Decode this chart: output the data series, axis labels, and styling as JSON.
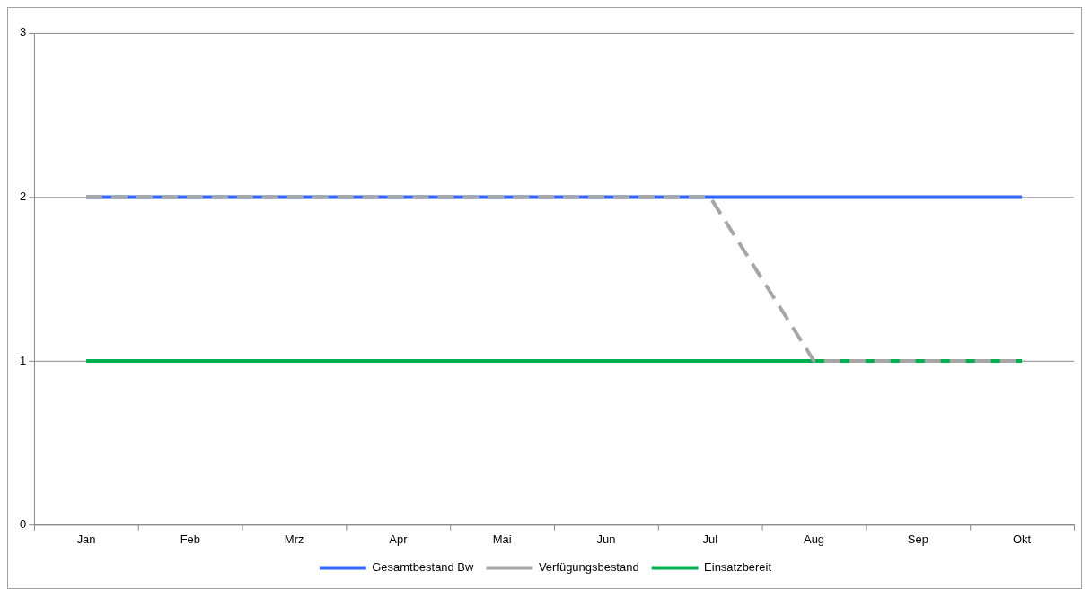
{
  "chart_data": {
    "type": "line",
    "categories": [
      "Jan",
      "Feb",
      "Mrz",
      "Apr",
      "Mai",
      "Jun",
      "Jul",
      "Aug",
      "Sep",
      "Okt"
    ],
    "series": [
      {
        "name": "Gesamtbestand Bw",
        "color": "#3366ff",
        "values": [
          2,
          2,
          2,
          2,
          2,
          2,
          2,
          2,
          2,
          2
        ]
      },
      {
        "name": "Verfügungsbestand",
        "color": "#a6a6a6",
        "values": [
          2,
          2,
          2,
          2,
          2,
          2,
          2,
          1,
          1,
          1
        ],
        "line_style": "dashed"
      },
      {
        "name": "Einsatzbereit",
        "color": "#00b050",
        "values": [
          1,
          1,
          1,
          1,
          1,
          1,
          1,
          1,
          1,
          1
        ]
      }
    ],
    "ylim": [
      0,
      3
    ],
    "yticks": [
      0,
      1,
      2,
      3
    ],
    "grid": "y",
    "legend": "bottom",
    "marker": "none"
  }
}
